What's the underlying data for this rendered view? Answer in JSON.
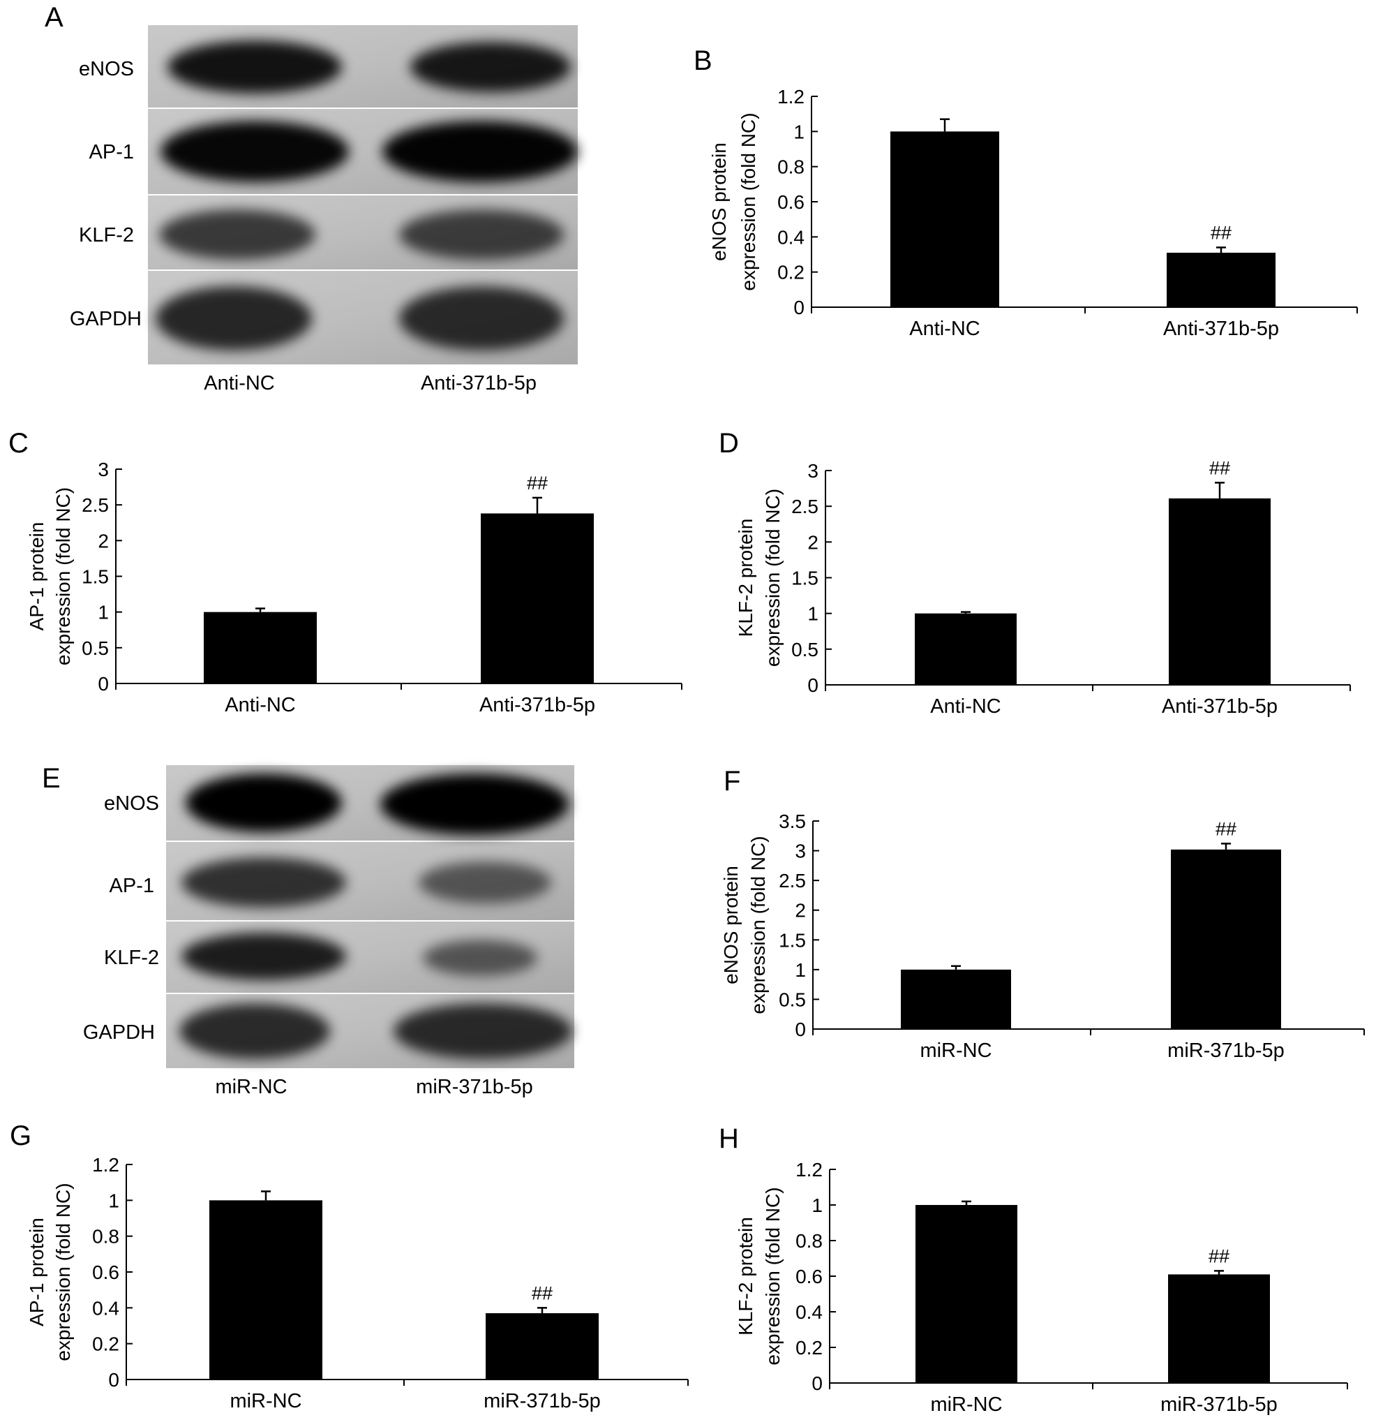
{
  "blots": [
    {
      "panel": "A",
      "proteins": [
        "eNOS",
        "AP-1",
        "KLF-2",
        "GAPDH"
      ],
      "lanes": [
        "Anti-NC",
        "Anti-371b-5p"
      ],
      "intensity": [
        [
          0.9,
          0.88
        ],
        [
          0.96,
          0.98
        ],
        [
          0.7,
          0.68
        ],
        [
          0.8,
          0.78
        ]
      ]
    },
    {
      "panel": "E",
      "proteins": [
        "eNOS",
        "AP-1",
        "KLF-2",
        "GAPDH"
      ],
      "lanes": [
        "miR-NC",
        "miR-371b-5p"
      ],
      "intensity": [
        [
          1.0,
          1.0
        ],
        [
          0.75,
          0.55
        ],
        [
          0.85,
          0.55
        ],
        [
          0.78,
          0.78
        ]
      ]
    }
  ],
  "chart_data": [
    {
      "panel": "B",
      "type": "bar",
      "categories": [
        "Anti-NC",
        "Anti-371b-5p"
      ],
      "values": [
        1.0,
        0.31
      ],
      "errors": [
        0.07,
        0.03
      ],
      "significance": [
        "",
        "##"
      ],
      "ylabel_line1": "eNOS protein",
      "ylabel_line2": "expression (fold NC)",
      "ylim": [
        0,
        1.2
      ],
      "yticks": [
        "0",
        "0.2",
        "0.4",
        "0.6",
        "0.8",
        "1",
        "1.2"
      ]
    },
    {
      "panel": "C",
      "type": "bar",
      "categories": [
        "Anti-NC",
        "Anti-371b-5p"
      ],
      "values": [
        1.0,
        2.38
      ],
      "errors": [
        0.05,
        0.22
      ],
      "significance": [
        "",
        "##"
      ],
      "ylabel_line1": "AP-1 protein",
      "ylabel_line2": "expression (fold NC)",
      "ylim": [
        0,
        3
      ],
      "yticks": [
        "0",
        "0.5",
        "1",
        "1.5",
        "2",
        "2.5",
        "3"
      ]
    },
    {
      "panel": "D",
      "type": "bar",
      "categories": [
        "Anti-NC",
        "Anti-371b-5p"
      ],
      "values": [
        1.0,
        2.61
      ],
      "errors": [
        0.02,
        0.22
      ],
      "significance": [
        "",
        "##"
      ],
      "ylabel_line1": "KLF-2 protein",
      "ylabel_line2": "expression (fold NC)",
      "ylim": [
        0,
        3
      ],
      "yticks": [
        "0",
        "0.5",
        "1",
        "1.5",
        "2",
        "2.5",
        "3"
      ]
    },
    {
      "panel": "F",
      "type": "bar",
      "categories": [
        "miR-NC",
        "miR-371b-5p"
      ],
      "values": [
        1.0,
        3.02
      ],
      "errors": [
        0.06,
        0.1
      ],
      "significance": [
        "",
        "##"
      ],
      "ylabel_line1": "eNOS protein",
      "ylabel_line2": "expression  (fold NC)",
      "ylim": [
        0,
        3.5
      ],
      "yticks": [
        "0",
        "0.5",
        "1",
        "1.5",
        "2",
        "2.5",
        "3",
        "3.5"
      ]
    },
    {
      "panel": "G",
      "type": "bar",
      "categories": [
        "miR-NC",
        "miR-371b-5p"
      ],
      "values": [
        1.0,
        0.37
      ],
      "errors": [
        0.05,
        0.03
      ],
      "significance": [
        "",
        "##"
      ],
      "ylabel_line1": "AP-1 protein",
      "ylabel_line2": "expression (fold NC)",
      "ylim": [
        0,
        1.2
      ],
      "yticks": [
        "0",
        "0.2",
        "0.4",
        "0.6",
        "0.8",
        "1",
        "1.2"
      ]
    },
    {
      "panel": "H",
      "type": "bar",
      "categories": [
        "miR-NC",
        "miR-371b-5p"
      ],
      "values": [
        1.0,
        0.61
      ],
      "errors": [
        0.02,
        0.02
      ],
      "significance": [
        "",
        "##"
      ],
      "ylabel_line1": "KLF-2 protein",
      "ylabel_line2": "expression (fold NC)",
      "ylim": [
        0,
        1.2
      ],
      "yticks": [
        "0",
        "0.2",
        "0.4",
        "0.6",
        "0.8",
        "1",
        "1.2"
      ]
    }
  ]
}
